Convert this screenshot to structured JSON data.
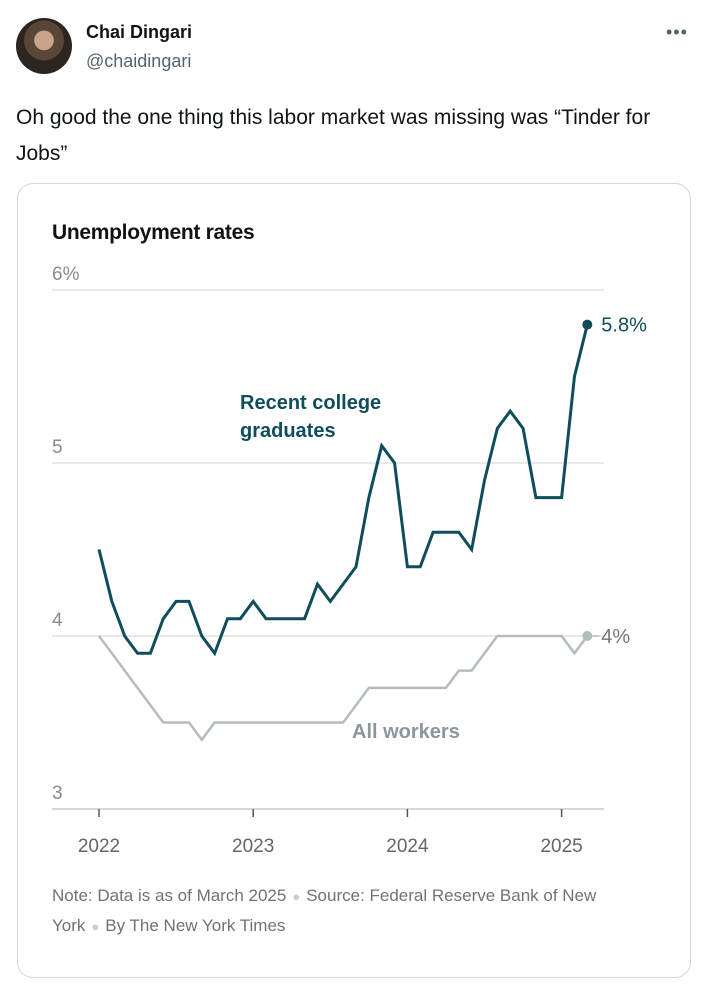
{
  "tweet": {
    "author_name": "Chai Dingari",
    "handle": "@chaidingari",
    "more_icon": "more-horizontal-icon",
    "text": "Oh good the one thing this labor market was missing was “Tinder for Jobs”"
  },
  "chart_data": {
    "type": "line",
    "title": "Unemployment rates",
    "ylim": [
      3,
      6
    ],
    "y_ticks": [
      "6%",
      "5",
      "4",
      "3"
    ],
    "y_tick_values": [
      6,
      5,
      4,
      3
    ],
    "x_ticks": [
      "2022",
      "2023",
      "2024",
      "2025"
    ],
    "x_start": "2022-01",
    "x_end": "2025-03",
    "x_frequency": "monthly",
    "grid": true,
    "series": [
      {
        "name": "Recent college graduates",
        "color": "#0f4d5c",
        "end_label": "5.8%",
        "values": [
          4.5,
          4.2,
          4.0,
          3.9,
          3.9,
          4.1,
          4.2,
          4.2,
          4.0,
          3.9,
          4.1,
          4.1,
          4.2,
          4.1,
          4.1,
          4.1,
          4.1,
          4.3,
          4.2,
          4.3,
          4.4,
          4.8,
          5.1,
          5.0,
          4.4,
          4.4,
          4.6,
          4.6,
          4.6,
          4.5,
          4.9,
          5.2,
          5.3,
          5.2,
          4.8,
          4.8,
          4.8,
          5.5,
          5.8
        ]
      },
      {
        "name": "All workers",
        "color": "#b4bcc0",
        "label_color": "#8a979c",
        "end_label": "4%",
        "values": [
          4.0,
          3.9,
          3.8,
          3.7,
          3.6,
          3.5,
          3.5,
          3.5,
          3.4,
          3.5,
          3.5,
          3.5,
          3.5,
          3.5,
          3.5,
          3.5,
          3.5,
          3.5,
          3.5,
          3.5,
          3.6,
          3.7,
          3.7,
          3.7,
          3.7,
          3.7,
          3.7,
          3.7,
          3.8,
          3.8,
          3.9,
          4.0,
          4.0,
          4.0,
          4.0,
          4.0,
          4.0,
          3.9,
          4.0
        ]
      }
    ],
    "series_labels": [
      "Recent college",
      "graduates",
      "All workers"
    ],
    "note": "Note: Data is as of March 2025",
    "source": "Source: Federal Reserve Bank of New York",
    "credit": "By The New York Times"
  }
}
